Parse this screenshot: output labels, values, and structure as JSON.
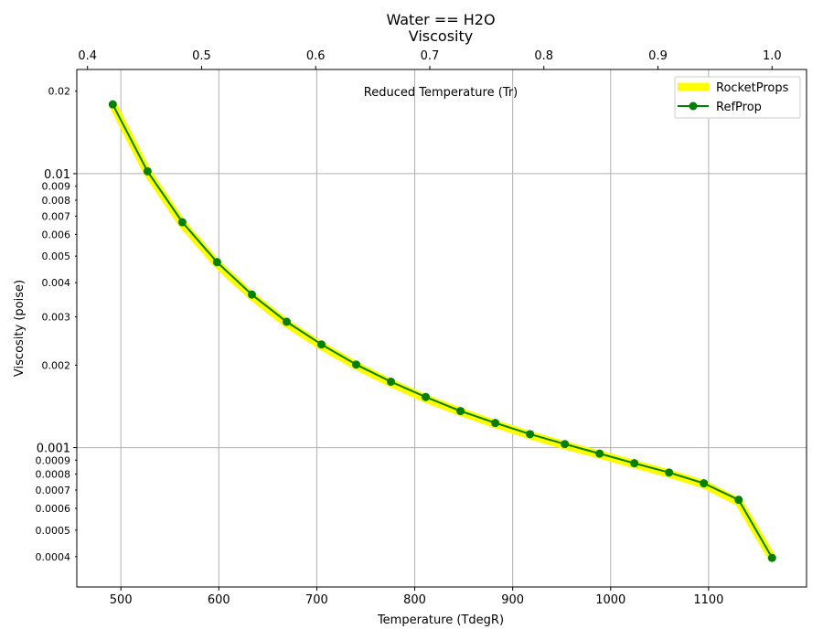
{
  "chart_data": {
    "type": "line",
    "title": "Water == H2O",
    "subtitle": "Viscosity",
    "xlabel": "Temperature (TdegR)",
    "ylabel": "Viscosity (poise)",
    "x2label": "Reduced Temperature (Tr)",
    "xlim": [
      455,
      1200
    ],
    "ylim": [
      0.00031,
      0.024
    ],
    "yscale": "log",
    "grid": true,
    "legend_position": "top-right",
    "x_ticks": [
      "500",
      "600",
      "700",
      "800",
      "900",
      "1000",
      "1100"
    ],
    "x2_ticks": [
      "0.4",
      "0.5",
      "0.6",
      "0.7",
      "0.8",
      "0.9",
      "1.0"
    ],
    "y_major_ticks": [
      "0.01",
      "0.001"
    ],
    "y_minor_ticks": [
      "0.02",
      "0.009",
      "0.008",
      "0.007",
      "0.006",
      "0.005",
      "0.004",
      "0.003",
      "0.002",
      "0.0009",
      "0.0008",
      "0.0007",
      "0.0006",
      "0.0005",
      "0.0004"
    ],
    "x": [
      491.7,
      527.2,
      562.7,
      598.2,
      633.7,
      669.2,
      704.7,
      740.2,
      775.7,
      811.2,
      846.7,
      882.2,
      917.7,
      953.2,
      988.7,
      1024.2,
      1059.7,
      1095.2,
      1130.7,
      1164.8
    ],
    "series": [
      {
        "name": "RocketProps",
        "color": "#ffff00",
        "style": "thick-line",
        "values": [
          0.0179,
          0.0101,
          0.00655,
          0.00468,
          0.00357,
          0.00284,
          0.00235,
          0.00199,
          0.00172,
          0.00151,
          0.00135,
          0.00122,
          0.00111,
          0.00102,
          0.000943,
          0.000871,
          0.000804,
          0.000735,
          0.000633,
          0.000396
        ]
      },
      {
        "name": "RefProp",
        "color": "#008000",
        "style": "line-markers",
        "values": [
          0.0179,
          0.0102,
          0.00665,
          0.00475,
          0.00362,
          0.00288,
          0.00238,
          0.00201,
          0.00174,
          0.00153,
          0.00136,
          0.00123,
          0.00112,
          0.00103,
          0.000951,
          0.000877,
          0.000811,
          0.000741,
          0.000645,
          0.000396
        ]
      }
    ]
  }
}
